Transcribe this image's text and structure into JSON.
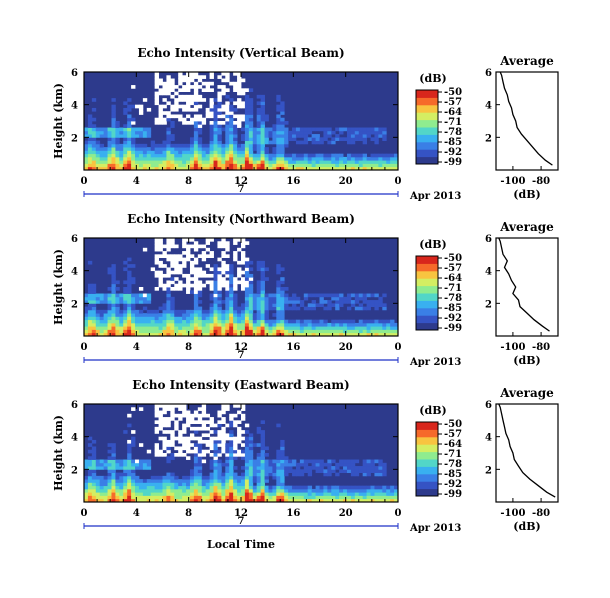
{
  "chart_data": [
    {
      "type": "heatmap",
      "title": "Echo Intensity (Vertical Beam)",
      "ylabel": "Height (km)",
      "x_ticks": [
        "0",
        "4",
        "8",
        "12",
        "16",
        "20",
        "0"
      ],
      "x_range_hours": [
        0,
        24
      ],
      "y_ticks": [
        "2",
        "4",
        "6"
      ],
      "y_range_km": [
        0,
        6
      ],
      "date_day": "7",
      "date_label": "Apr 2013",
      "colorbar": {
        "label": "(dB)",
        "ticks": [
          "-50",
          "-57",
          "-64",
          "-71",
          "-78",
          "-85",
          "-92",
          "-99"
        ]
      },
      "average_profile": {
        "title": "Average",
        "xlabel": "(dB)",
        "x_ticks": [
          "-100",
          "-80"
        ],
        "y_ticks": [
          "2",
          "4",
          "6"
        ],
        "points": [
          [
            -72,
            0.3
          ],
          [
            -77,
            0.6
          ],
          [
            -82,
            1.0
          ],
          [
            -86,
            1.4
          ],
          [
            -90,
            1.8
          ],
          [
            -94,
            2.2
          ],
          [
            -97,
            2.6
          ],
          [
            -98,
            3.0
          ],
          [
            -100,
            3.4
          ],
          [
            -101,
            3.8
          ],
          [
            -103,
            4.2
          ],
          [
            -104,
            4.6
          ],
          [
            -106,
            5.0
          ],
          [
            -107,
            5.4
          ],
          [
            -108,
            5.8
          ],
          [
            -109,
            6.0
          ]
        ]
      }
    },
    {
      "type": "heatmap",
      "title": "Echo Intensity (Northward Beam)",
      "ylabel": "Height (km)",
      "x_ticks": [
        "0",
        "4",
        "8",
        "12",
        "16",
        "20",
        "0"
      ],
      "x_range_hours": [
        0,
        24
      ],
      "y_ticks": [
        "2",
        "4",
        "6"
      ],
      "y_range_km": [
        0,
        6
      ],
      "date_day": "7",
      "date_label": "Apr 2013",
      "colorbar": {
        "label": "(dB)",
        "ticks": [
          "-50",
          "-57",
          "-64",
          "-71",
          "-78",
          "-85",
          "-92",
          "-99"
        ]
      },
      "average_profile": {
        "title": "Average",
        "xlabel": "(dB)",
        "x_ticks": [
          "-100",
          "-80"
        ],
        "y_ticks": [
          "2",
          "4",
          "6"
        ],
        "points": [
          [
            -74,
            0.3
          ],
          [
            -79,
            0.6
          ],
          [
            -85,
            1.0
          ],
          [
            -90,
            1.4
          ],
          [
            -95,
            1.8
          ],
          [
            -96,
            2.2
          ],
          [
            -100,
            2.6
          ],
          [
            -98,
            3.0
          ],
          [
            -101,
            3.4
          ],
          [
            -103,
            3.8
          ],
          [
            -106,
            4.2
          ],
          [
            -104,
            4.6
          ],
          [
            -107,
            5.0
          ],
          [
            -108,
            5.4
          ],
          [
            -109,
            5.8
          ],
          [
            -110,
            6.0
          ]
        ]
      }
    },
    {
      "type": "heatmap",
      "title": "Echo Intensity (Eastward Beam)",
      "ylabel": "Height (km)",
      "xlabel": "Local Time",
      "x_ticks": [
        "0",
        "4",
        "8",
        "12",
        "16",
        "20",
        "0"
      ],
      "x_range_hours": [
        0,
        24
      ],
      "y_ticks": [
        "2",
        "4",
        "6"
      ],
      "y_range_km": [
        0,
        6
      ],
      "date_day": "7",
      "date_label": "Apr 2013",
      "colorbar": {
        "label": "(dB)",
        "ticks": [
          "-50",
          "-57",
          "-64",
          "-71",
          "-78",
          "-85",
          "-92",
          "-99"
        ]
      },
      "average_profile": {
        "title": "Average",
        "xlabel": "(dB)",
        "x_ticks": [
          "-100",
          "-80"
        ],
        "y_ticks": [
          "2",
          "4",
          "6"
        ],
        "points": [
          [
            -70,
            0.3
          ],
          [
            -76,
            0.6
          ],
          [
            -82,
            1.0
          ],
          [
            -88,
            1.4
          ],
          [
            -93,
            1.8
          ],
          [
            -96,
            2.2
          ],
          [
            -99,
            2.6
          ],
          [
            -100,
            3.0
          ],
          [
            -102,
            3.4
          ],
          [
            -103,
            3.8
          ],
          [
            -105,
            4.2
          ],
          [
            -106,
            4.6
          ],
          [
            -107,
            5.0
          ],
          [
            -108,
            5.4
          ],
          [
            -109,
            5.8
          ],
          [
            -110,
            6.0
          ]
        ]
      }
    }
  ],
  "colors": {
    "background": "#2d3a8c",
    "blank": "#ffffff",
    "date_axis": "#1f32c8",
    "colormap": [
      "#2d3a8c",
      "#3553c4",
      "#3a7fe6",
      "#39b0f0",
      "#52d6c8",
      "#8fec8f",
      "#d4ee62",
      "#f8c440",
      "#f66a2a",
      "#d8261c"
    ]
  }
}
